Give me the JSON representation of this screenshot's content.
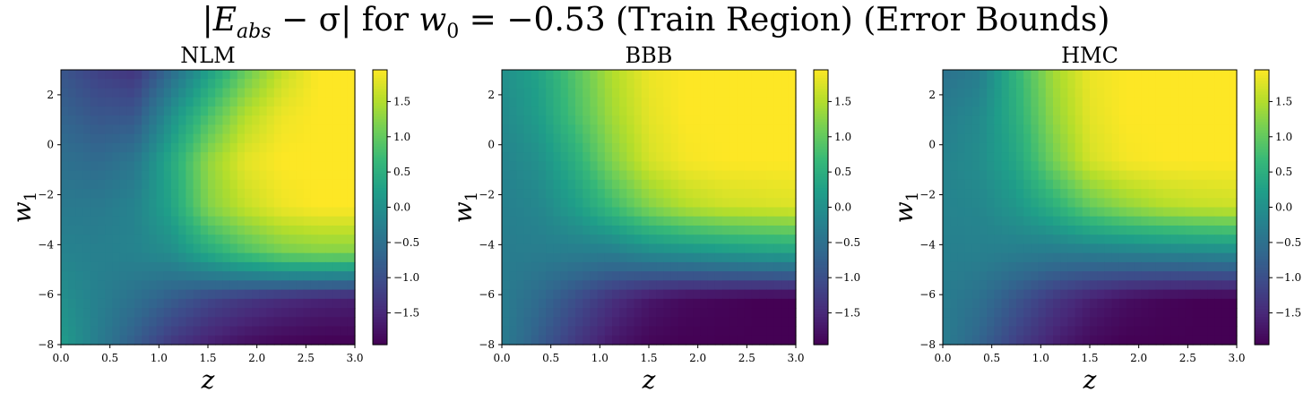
{
  "figure": {
    "title_parts": {
      "abs_open": "|",
      "E": "E",
      "E_sub": "abs",
      "minus_sigma": " − σ",
      "abs_close": "|",
      "for": " for ",
      "w": "w",
      "w_sub": "0",
      "equals_value": " = −0.53",
      "suffix": " (Train Region) (Error Bounds)"
    }
  },
  "colormap": {
    "name": "viridis",
    "stops": [
      "#440154",
      "#482878",
      "#3e4989",
      "#31688e",
      "#26828e",
      "#1f9e89",
      "#35b779",
      "#6ece58",
      "#b5de2b",
      "#fde725"
    ]
  },
  "chart_data": [
    {
      "type": "heatmap",
      "title": "NLM",
      "xlabel": "z",
      "ylabel": "w",
      "ylabel_sub": "1",
      "xlim": [
        0.0,
        3.0
      ],
      "ylim": [
        -8,
        3
      ],
      "xticks": [
        0.0,
        0.5,
        1.0,
        1.5,
        2.0,
        2.5,
        3.0
      ],
      "xtick_labels": [
        "0.0",
        "0.5",
        "1.0",
        "1.5",
        "2.0",
        "2.5",
        "3.0"
      ],
      "yticks": [
        -8,
        -6,
        -4,
        -2,
        0,
        2
      ],
      "ytick_labels": [
        "−8",
        "−6",
        "−4",
        "−2",
        "0",
        "2"
      ],
      "colorbar": {
        "vmin": -1.95,
        "vmax": 1.95,
        "ticks": [
          -1.5,
          -1.0,
          -0.5,
          0.0,
          0.5,
          1.0,
          1.5
        ],
        "tick_labels": [
          "−1.5",
          "−1.0",
          "−0.5",
          "0.0",
          "0.5",
          "1.0",
          "1.5"
        ]
      },
      "grid_shape": [
        30,
        40
      ],
      "z_grid": [
        [
          -0.9,
          -1.2,
          -1.35,
          -0.6,
          0.2,
          1.0,
          1.6,
          1.95,
          1.95
        ],
        [
          -0.7,
          -0.9,
          -0.9,
          0.0,
          0.8,
          1.5,
          1.85,
          1.95,
          1.95
        ],
        [
          -0.5,
          -0.6,
          -0.4,
          0.4,
          1.3,
          1.8,
          1.95,
          1.95,
          1.95
        ],
        [
          -0.35,
          -0.35,
          -0.2,
          0.3,
          1.2,
          1.6,
          1.85,
          1.95,
          1.95
        ],
        [
          -0.2,
          -0.25,
          -0.2,
          -0.05,
          0.4,
          0.8,
          1.1,
          1.2,
          1.2
        ],
        [
          0.0,
          -0.25,
          -0.5,
          -0.8,
          -1.1,
          -1.3,
          -1.45,
          -1.55,
          -1.6
        ],
        [
          0.2,
          -0.3,
          -0.8,
          -1.3,
          -1.6,
          -1.8,
          -1.9,
          -1.95,
          -1.95
        ]
      ]
    },
    {
      "type": "heatmap",
      "title": "BBB",
      "xlabel": "z",
      "ylabel": "w",
      "ylabel_sub": "1",
      "xlim": [
        0.0,
        3.0
      ],
      "ylim": [
        -8,
        3
      ],
      "xticks": [
        0.0,
        0.5,
        1.0,
        1.5,
        2.0,
        2.5,
        3.0
      ],
      "xtick_labels": [
        "0.0",
        "0.5",
        "1.0",
        "1.5",
        "2.0",
        "2.5",
        "3.0"
      ],
      "yticks": [
        -8,
        -6,
        -4,
        -2,
        0,
        2
      ],
      "ytick_labels": [
        "−8",
        "−6",
        "−4",
        "−2",
        "0",
        "2"
      ],
      "colorbar": {
        "vmin": -1.95,
        "vmax": 1.95,
        "ticks": [
          -1.5,
          -1.0,
          -0.5,
          0.0,
          0.5,
          1.0,
          1.5
        ],
        "tick_labels": [
          "−1.5",
          "−1.0",
          "−0.5",
          "0.0",
          "0.5",
          "1.0",
          "1.5"
        ]
      },
      "grid_shape": [
        30,
        40
      ],
      "z_grid": [
        [
          0.0,
          0.3,
          0.9,
          1.5,
          1.85,
          1.95,
          1.95,
          1.95,
          1.95
        ],
        [
          -0.1,
          0.2,
          0.8,
          1.4,
          1.8,
          1.95,
          1.95,
          1.95,
          1.95
        ],
        [
          -0.2,
          0.0,
          0.5,
          1.2,
          1.7,
          1.9,
          1.95,
          1.95,
          1.95
        ],
        [
          -0.25,
          -0.15,
          0.2,
          0.7,
          1.2,
          1.5,
          1.65,
          1.7,
          1.75
        ],
        [
          -0.3,
          -0.3,
          -0.3,
          -0.3,
          -0.1,
          0.0,
          0.1,
          0.2,
          0.25
        ],
        [
          -0.3,
          -0.6,
          -1.0,
          -1.4,
          -1.7,
          -1.85,
          -1.9,
          -1.95,
          -1.95
        ],
        [
          -0.3,
          -0.8,
          -1.3,
          -1.7,
          -1.9,
          -1.95,
          -1.95,
          -1.95,
          -1.95
        ]
      ]
    },
    {
      "type": "heatmap",
      "title": "HMC",
      "xlabel": "z",
      "ylabel": "w",
      "ylabel_sub": "1",
      "xlim": [
        0.0,
        3.0
      ],
      "ylim": [
        -8,
        3
      ],
      "xticks": [
        0.0,
        0.5,
        1.0,
        1.5,
        2.0,
        2.5,
        3.0
      ],
      "xtick_labels": [
        "0.0",
        "0.5",
        "1.0",
        "1.5",
        "2.0",
        "2.5",
        "3.0"
      ],
      "yticks": [
        -8,
        -6,
        -4,
        -2,
        0,
        2
      ],
      "ytick_labels": [
        "−8",
        "−6",
        "−4",
        "−2",
        "0",
        "2"
      ],
      "colorbar": {
        "vmin": -1.95,
        "vmax": 1.95,
        "ticks": [
          -1.5,
          -1.0,
          -0.5,
          0.0,
          0.5,
          1.0,
          1.5
        ],
        "tick_labels": [
          "−1.5",
          "−1.0",
          "−0.5",
          "0.0",
          "0.5",
          "1.0",
          "1.5"
        ]
      },
      "grid_shape": [
        30,
        40
      ],
      "z_grid": [
        [
          -0.5,
          -0.3,
          0.6,
          1.4,
          1.85,
          1.95,
          1.95,
          1.95,
          1.95
        ],
        [
          -0.3,
          -0.1,
          0.5,
          1.3,
          1.8,
          1.95,
          1.95,
          1.95,
          1.95
        ],
        [
          -0.2,
          -0.05,
          0.35,
          1.1,
          1.7,
          1.9,
          1.95,
          1.95,
          1.95
        ],
        [
          -0.2,
          -0.15,
          0.1,
          0.5,
          1.0,
          1.3,
          1.5,
          1.6,
          1.65
        ],
        [
          -0.25,
          -0.25,
          -0.3,
          -0.35,
          -0.3,
          -0.25,
          -0.2,
          -0.15,
          -0.1
        ],
        [
          -0.3,
          -0.5,
          -0.9,
          -1.3,
          -1.6,
          -1.8,
          -1.9,
          -1.95,
          -1.95
        ],
        [
          -0.3,
          -0.7,
          -1.2,
          -1.6,
          -1.85,
          -1.95,
          -1.95,
          -1.95,
          -1.95
        ]
      ]
    }
  ]
}
